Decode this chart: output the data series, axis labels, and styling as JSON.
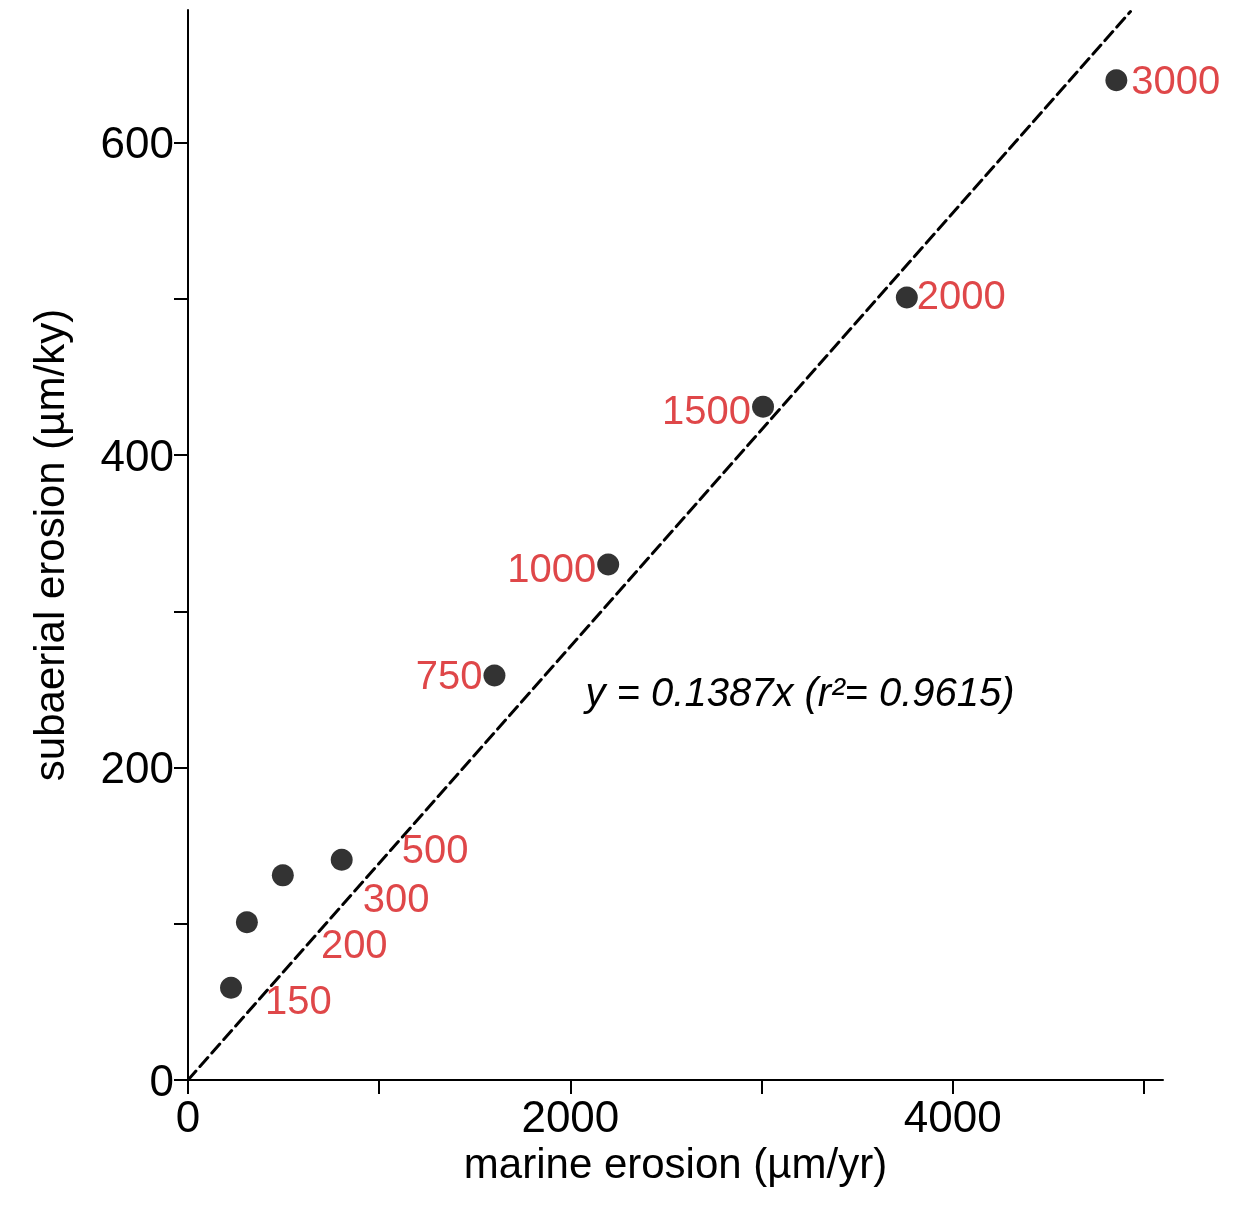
{
  "chart_data": {
    "type": "scatter",
    "xlabel": "marine erosion (µm/yr)",
    "ylabel": "subaerial erosion (µm/ky)",
    "xlim": [
      0,
      5100
    ],
    "ylim": [
      0,
      685
    ],
    "xticks": [
      0,
      {
        "value": 1000,
        "label": null
      },
      2000,
      {
        "value": 3000,
        "label": null
      },
      4000,
      {
        "value": 5000,
        "label": null
      }
    ],
    "yticks": [
      0,
      {
        "value": 100,
        "label": null
      },
      200,
      {
        "value": 300,
        "label": null
      },
      400,
      {
        "value": 500,
        "label": null
      },
      600
    ],
    "grid": false,
    "legend": false,
    "marker": "circle",
    "series": [
      {
        "color": "#000000",
        "x": [
          225,
          308,
          496,
          804,
          1603,
          2198,
          3008,
          3760,
          4856
        ],
        "values": [
          59,
          101,
          131,
          141,
          259,
          330,
          431,
          501,
          640
        ]
      },
      {
        "type": "line",
        "name": "y = 0.1387x (r²= 0.9615)",
        "color": "#000000",
        "marker": "none",
        "line_style": "dashed",
        "x": [
          0,
          4930
        ],
        "values": [
          0,
          684
        ]
      }
    ],
    "annotations": [
      {
        "text": "150",
        "x": 225,
        "y": 59
      },
      {
        "text": "200",
        "x": 308,
        "y": 101
      },
      {
        "text": "300",
        "x": 496,
        "y": 131
      },
      {
        "text": "500",
        "x": 804,
        "y": 141
      },
      {
        "text": "750",
        "x": 1603,
        "y": 259
      },
      {
        "text": "1000",
        "x": 2198,
        "y": 330
      },
      {
        "text": "1500",
        "x": 3008,
        "y": 431
      },
      {
        "text": "2000",
        "x": 3760,
        "y": 501
      },
      {
        "text": "3000",
        "x": 4856,
        "y": 640
      }
    ]
  }
}
